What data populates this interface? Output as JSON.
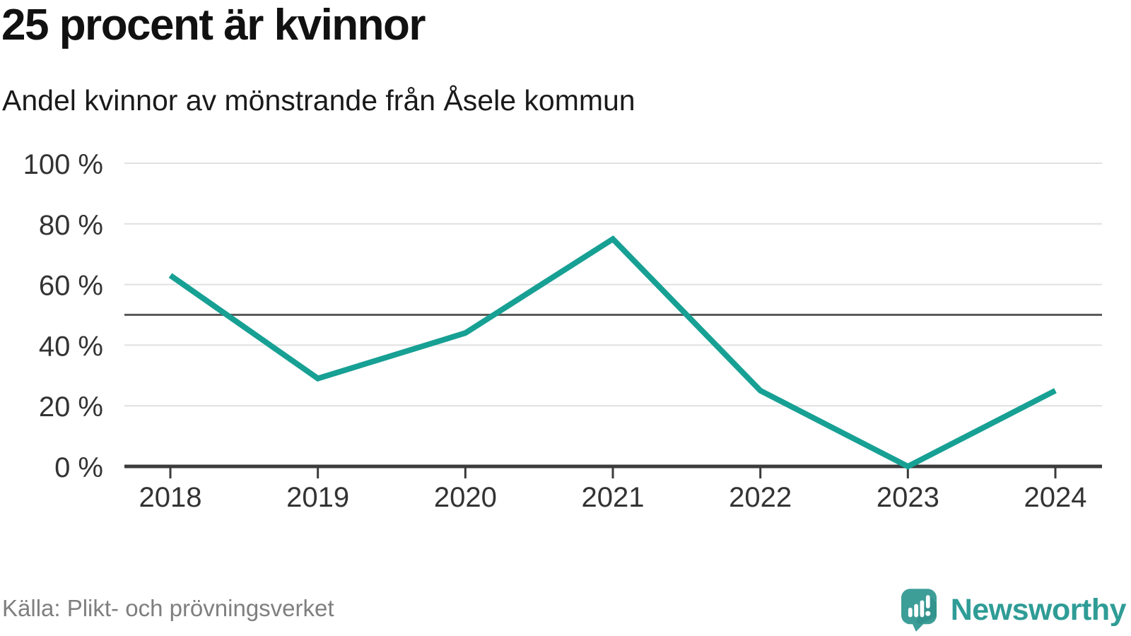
{
  "header": {
    "title": "25 procent är kvinnor",
    "subtitle": "Andel kvinnor av mönstrande från Åsele kommun"
  },
  "chart_data": {
    "type": "line",
    "title": "25 procent är kvinnor",
    "subtitle": "Andel kvinnor av mönstrande från Åsele kommun",
    "x": [
      2018,
      2019,
      2020,
      2021,
      2022,
      2023,
      2024
    ],
    "series": [
      {
        "name": "Andel kvinnor av mönstrande",
        "values": [
          63,
          29,
          44,
          75,
          25,
          0,
          25
        ]
      }
    ],
    "unit": "%",
    "ylim": [
      0,
      100
    ],
    "yticks": [
      0,
      20,
      40,
      60,
      80,
      100
    ],
    "ytick_format": "{v} %",
    "reference_line": 50,
    "grid": "horizontal",
    "legend": "none",
    "colors": {
      "line": "#17a094",
      "gridline": "#e0e0e0",
      "reference_line": "#5a5a5a",
      "axis": "#3b3b3b"
    }
  },
  "footer": {
    "source": "Källa: Plikt- och prövningsverket",
    "brand": "Newsworthy",
    "brand_color": "#2f9c96",
    "logo_icon_color": "#3d9e98",
    "logo_icon": "speech-bubble-bar-chart-exclamation-icon"
  }
}
